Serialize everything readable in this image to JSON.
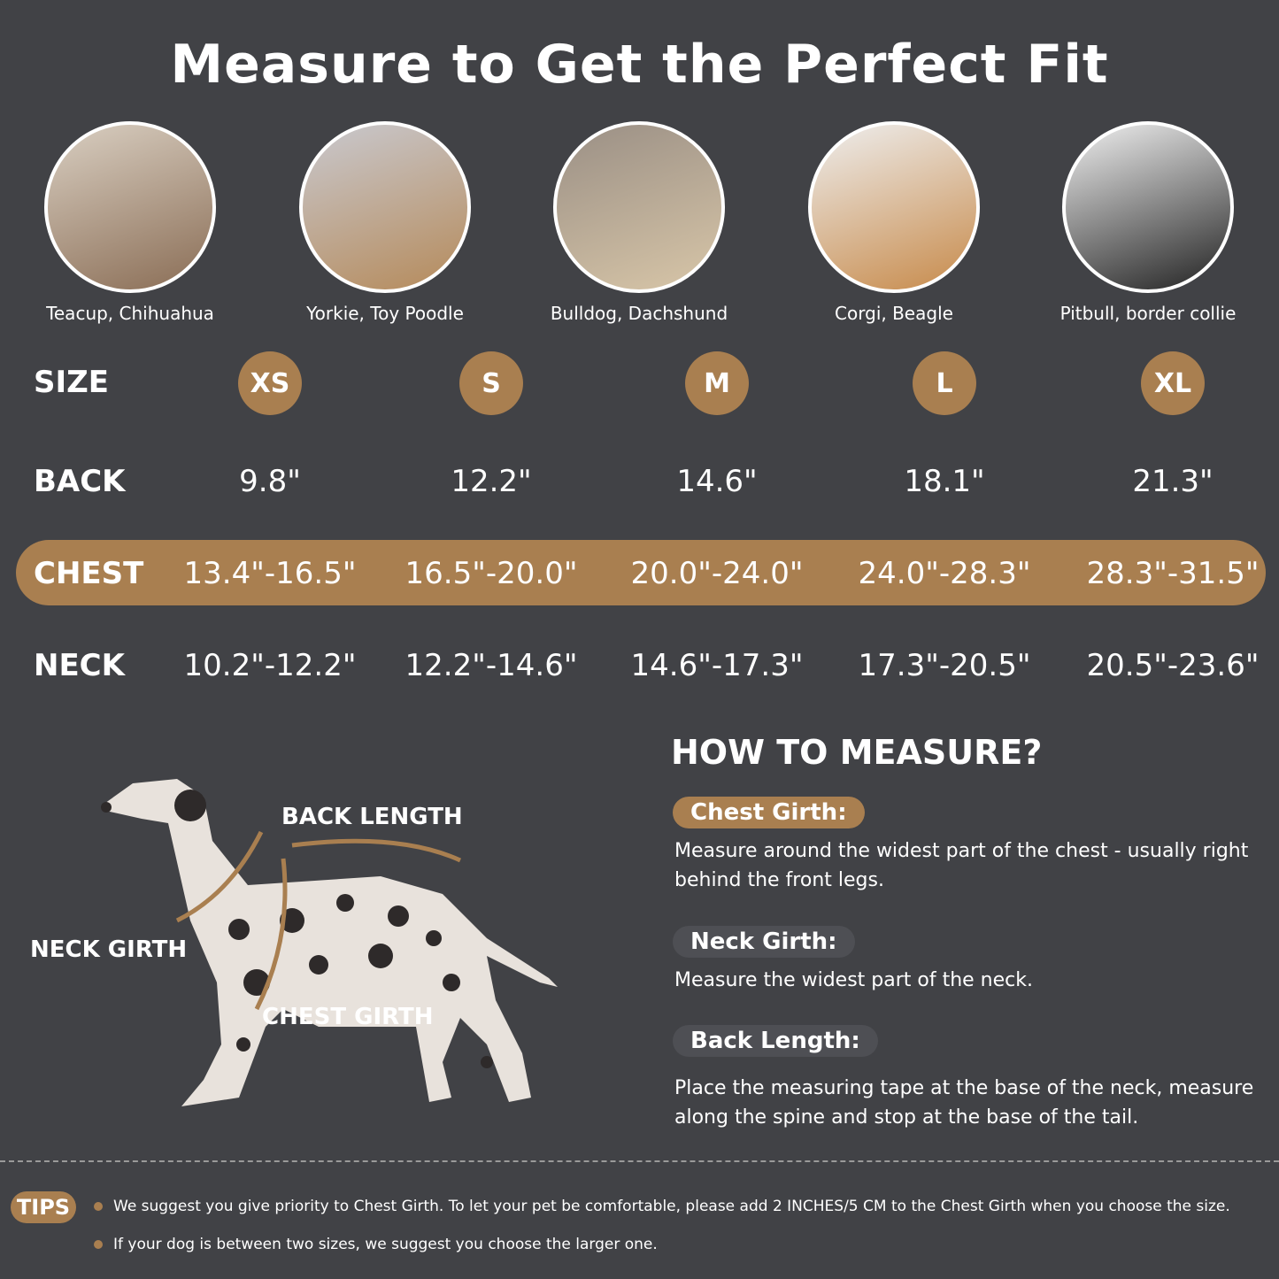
{
  "title": "Measure to Get the Perfect Fit",
  "breeds": [
    "Teacup, Chihuahua",
    "Yorkie, Toy Poodle",
    "Bulldog, Dachshund",
    "Corgi, Beagle",
    "Pitbull, border collie"
  ],
  "table": {
    "size_label": "SIZE",
    "sizes": [
      "XS",
      "S",
      "M",
      "L",
      "XL"
    ],
    "back_label": "BACK",
    "back": [
      "9.8\"",
      "12.2\"",
      "14.6\"",
      "18.1\"",
      "21.3\""
    ],
    "chest_label": "CHEST",
    "chest": [
      "13.4\"-16.5\"",
      "16.5\"-20.0\"",
      "20.0\"-24.0\"",
      "24.0\"-28.3\"",
      "28.3\"-31.5\""
    ],
    "neck_label": "NECK",
    "neck": [
      "10.2\"-12.2\"",
      "12.2\"-14.6\"",
      "14.6\"-17.3\"",
      "17.3\"-20.5\"",
      "20.5\"-23.6\""
    ]
  },
  "diagram": {
    "back": "BACK LENGTH",
    "neck": "NECK GIRTH",
    "chest": "CHEST GIRTH"
  },
  "howto": {
    "title": "HOW TO MEASURE?",
    "chest_title": "Chest Girth:",
    "chest_desc": "Measure around the widest part of the chest - usually right behind the front legs.",
    "neck_title": "Neck Girth:",
    "neck_desc": "Measure the widest part of the neck.",
    "back_title": "Back Length:",
    "back_desc": "Place the measuring tape at the base of the neck, measure along the spine and stop at the base of the tail."
  },
  "tips": {
    "label": "TIPS",
    "items": [
      "We suggest you give priority to Chest Girth. To let your pet be comfortable, please add 2 INCHES/5 CM to the Chest Girth when you choose the size.",
      "If your dog is between two sizes, we suggest you choose the larger one."
    ]
  },
  "colors": {
    "background": "#414246",
    "accent": "#a97f50"
  }
}
